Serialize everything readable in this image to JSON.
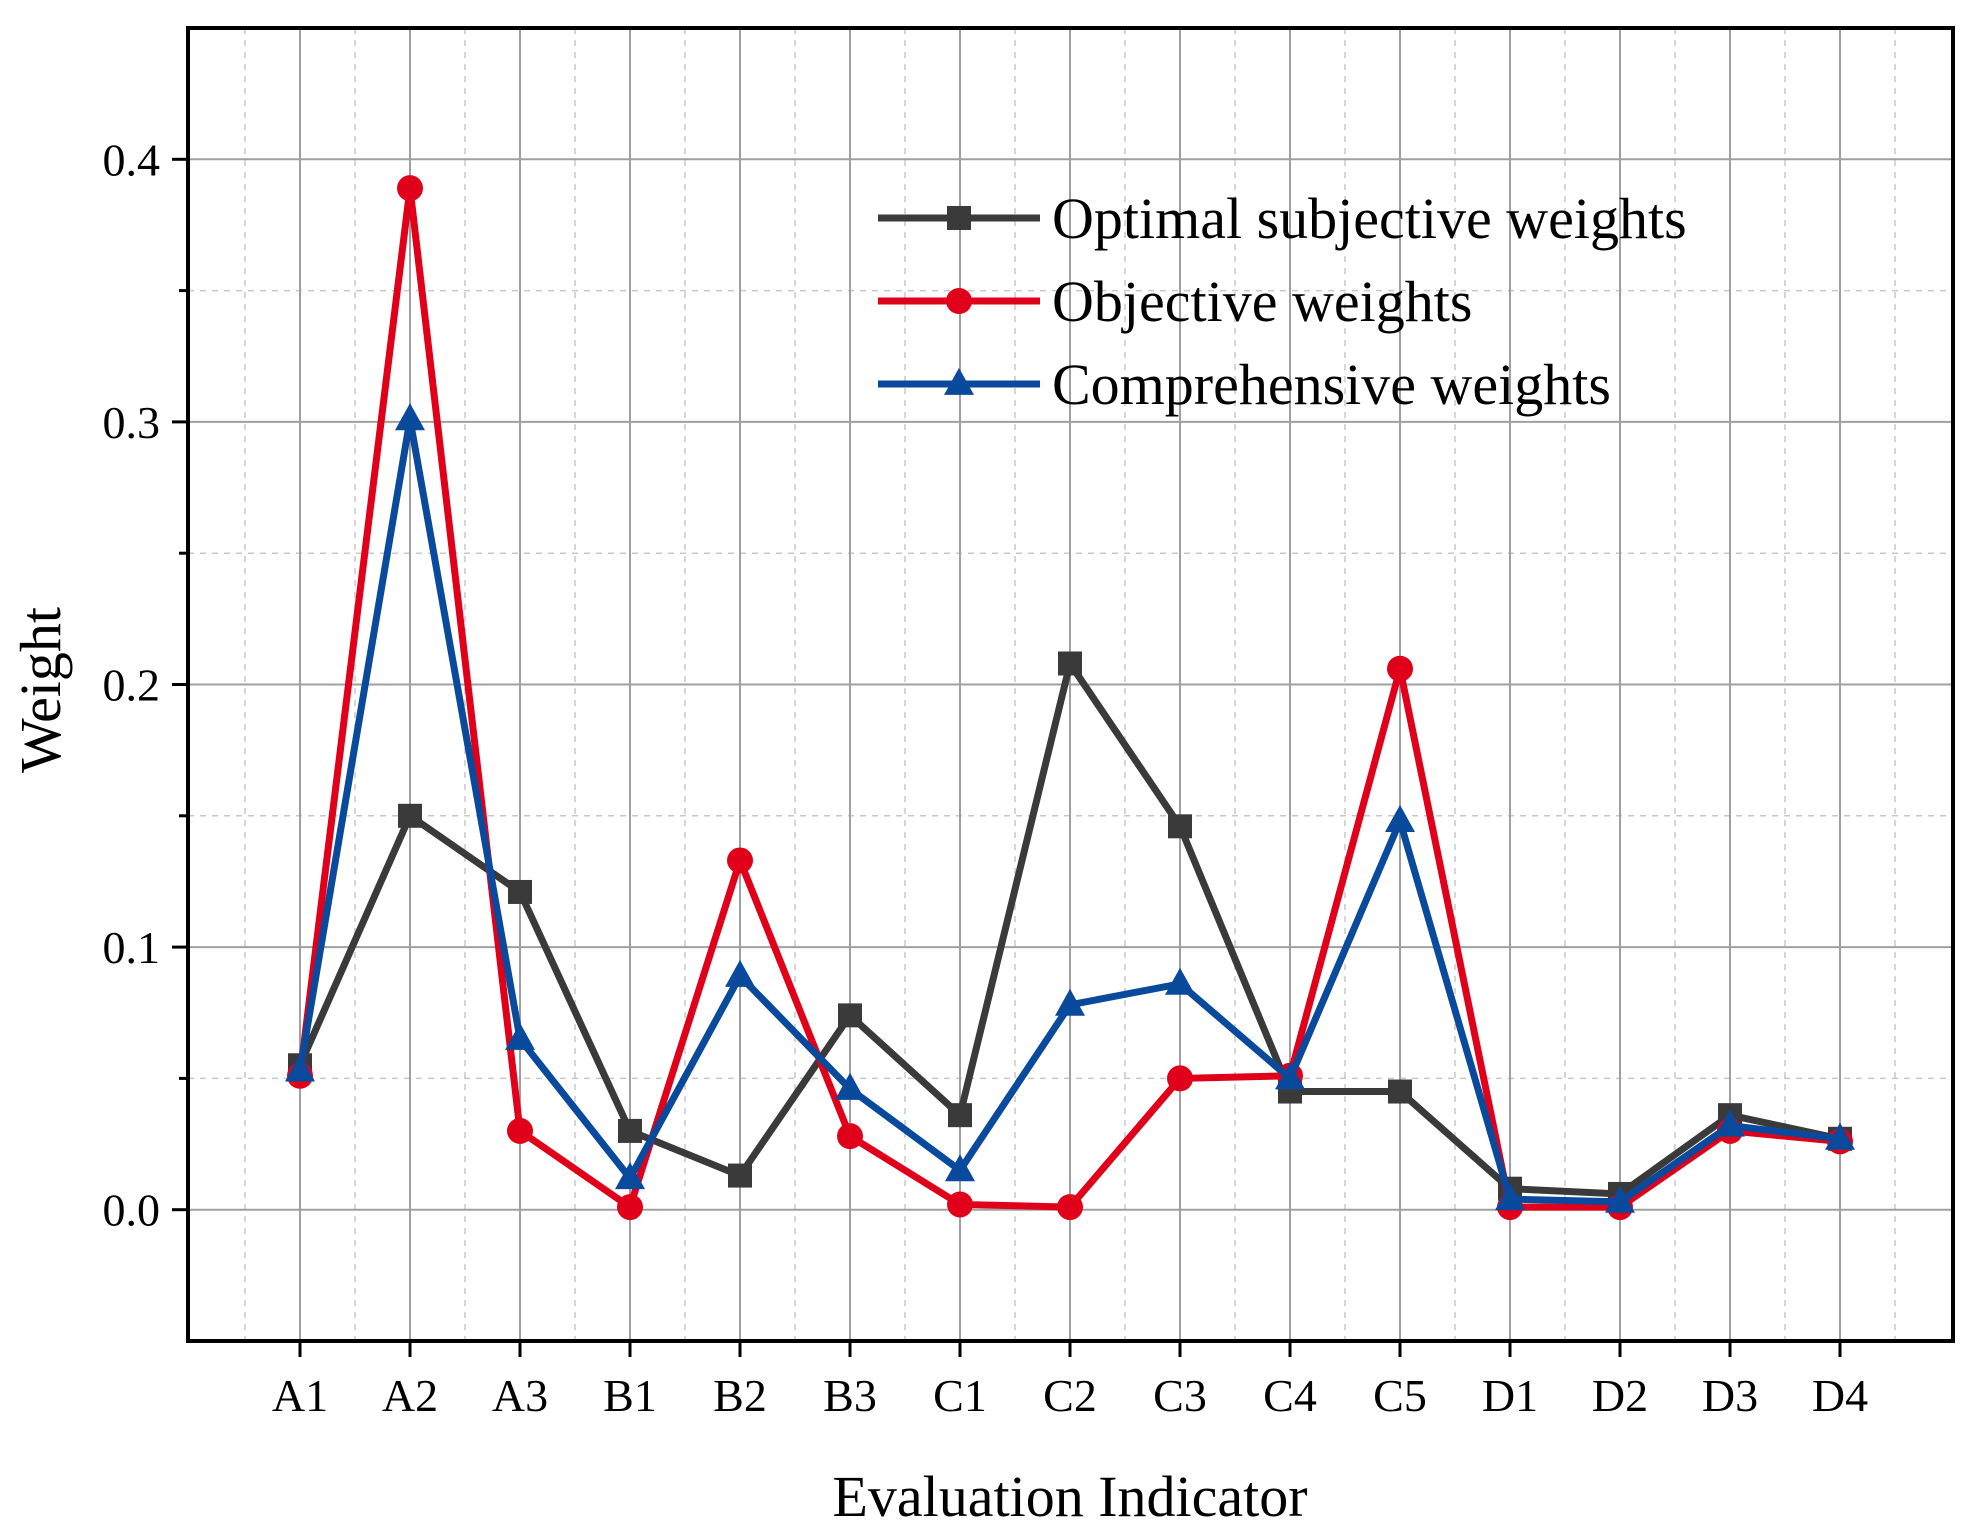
{
  "chart_data": {
    "type": "line",
    "categories": [
      "A1",
      "A2",
      "A3",
      "B1",
      "B2",
      "B3",
      "C1",
      "C2",
      "C3",
      "C4",
      "C5",
      "D1",
      "D2",
      "D3",
      "D4"
    ],
    "xlabel": "Evaluation Indicator",
    "ylabel": "Weight",
    "ylim": [
      -0.05,
      0.45
    ],
    "yticks": [
      0.0,
      0.1,
      0.2,
      0.3,
      0.4
    ],
    "ytick_labels": [
      "0.0",
      "0.1",
      "0.2",
      "0.3",
      "0.4"
    ],
    "grid": true,
    "legend_position": "top-right",
    "series": [
      {
        "name": "Optimal subjective weights",
        "color": "#3a3a3a",
        "marker": "square",
        "values": [
          0.055,
          0.15,
          0.121,
          0.03,
          0.013,
          0.074,
          0.036,
          0.208,
          0.146,
          0.045,
          0.045,
          0.008,
          0.006,
          0.036,
          0.027
        ]
      },
      {
        "name": "Objective weights",
        "color": "#e1001a",
        "marker": "circle",
        "values": [
          0.051,
          0.389,
          0.03,
          0.001,
          0.133,
          0.028,
          0.002,
          0.001,
          0.05,
          0.051,
          0.206,
          0.001,
          0.001,
          0.03,
          0.026
        ]
      },
      {
        "name": "Comprehensive weights",
        "color": "#0a4a9c",
        "marker": "triangle",
        "values": [
          0.053,
          0.301,
          0.065,
          0.012,
          0.089,
          0.046,
          0.015,
          0.078,
          0.086,
          0.05,
          0.148,
          0.004,
          0.003,
          0.032,
          0.027
        ]
      }
    ]
  }
}
